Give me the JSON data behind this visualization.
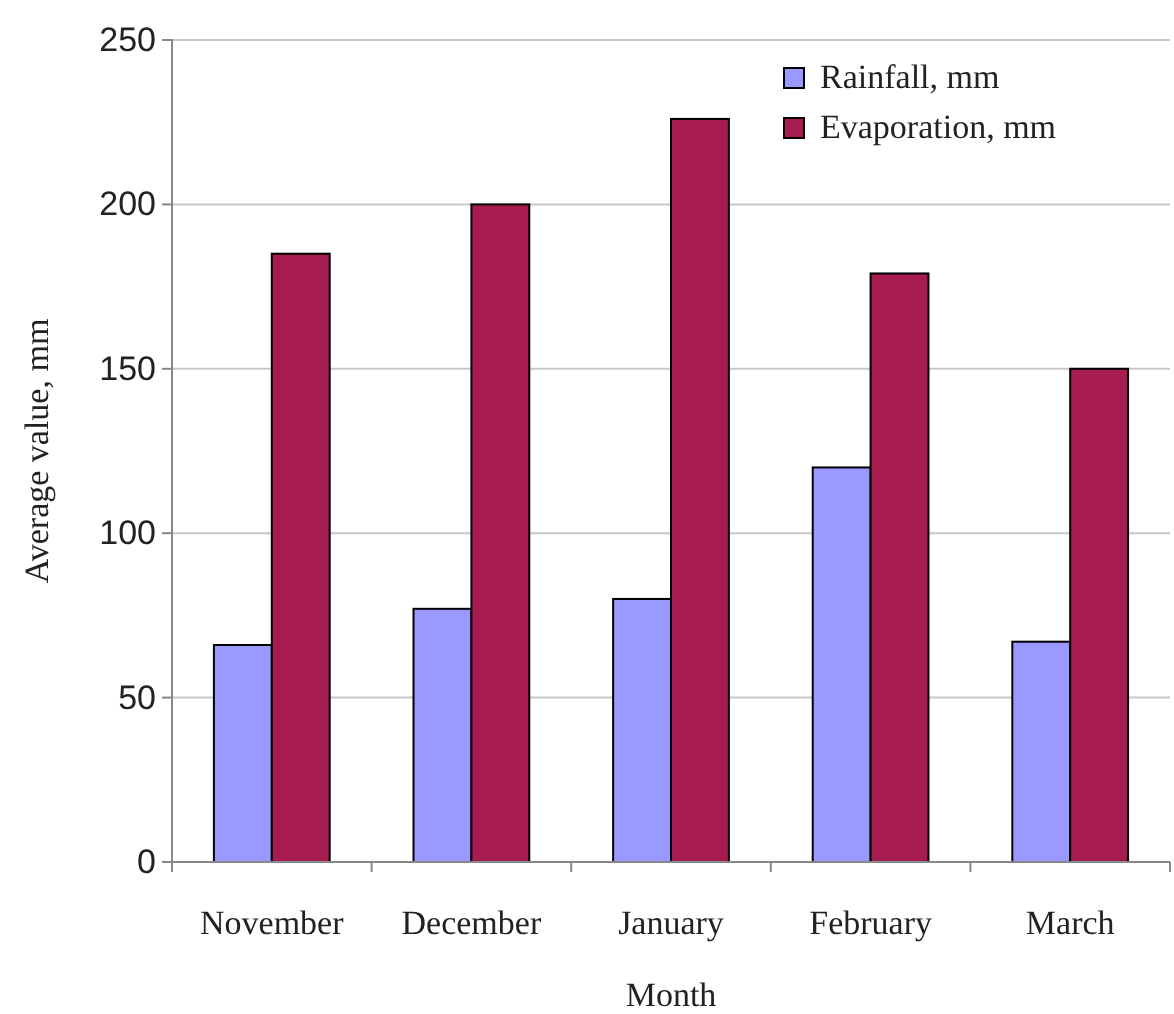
{
  "chart_data": {
    "type": "bar",
    "xlabel": "Month",
    "ylabel": "Average value, mm",
    "categories": [
      "November",
      "December",
      "January",
      "February",
      "March"
    ],
    "series": [
      {
        "name": "Rainfall, mm",
        "color": "#9999ff",
        "values": [
          66,
          77,
          80,
          120,
          67
        ]
      },
      {
        "name": "Evaporation, mm",
        "color": "#a61c50",
        "values": [
          185,
          200,
          226,
          179,
          150
        ]
      }
    ],
    "ylim": [
      0,
      250
    ],
    "yticks": [
      0,
      50,
      100,
      150,
      200,
      250
    ],
    "grid": "y",
    "legend": "top right"
  }
}
